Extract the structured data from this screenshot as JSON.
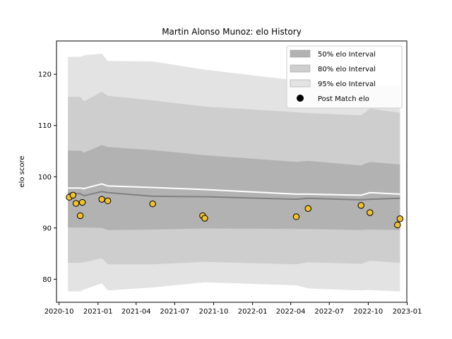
{
  "chart_data": {
    "type": "line",
    "title": "Martin Alonso Munoz: elo History",
    "xlabel": "",
    "ylabel": "elo score",
    "xlim": [
      "2020-09-25",
      "2022-12-31"
    ],
    "ylim": [
      75.5,
      126.5
    ],
    "x_ticks": [
      "2020-10",
      "2021-01",
      "2021-04",
      "2021-07",
      "2021-10",
      "2022-01",
      "2022-04",
      "2022-07",
      "2022-10",
      "2023-01"
    ],
    "y_ticks": [
      80,
      90,
      100,
      110,
      120
    ],
    "grid": false,
    "legend_position": "top-right",
    "bands_x": [
      "2020-10-22",
      "2020-11-20",
      "2020-11-29",
      "2021-01-10",
      "2021-01-24",
      "2021-05-10",
      "2021-09-10",
      "2022-04-14",
      "2022-05-12",
      "2022-09-14",
      "2022-10-05",
      "2022-12-15"
    ],
    "series": [
      {
        "name": "95% elo Interval",
        "kind": "band",
        "color": "#e3e3e3",
        "lower": [
          77.6,
          77.6,
          78.0,
          79.2,
          77.8,
          78.4,
          79.4,
          78.8,
          78.2,
          77.8,
          77.9,
          77.6
        ],
        "upper": [
          123.4,
          123.4,
          123.7,
          124.0,
          122.6,
          122.5,
          120.9,
          118.8,
          118.6,
          117.9,
          117.8,
          117.8
        ]
      },
      {
        "name": "80% elo Interval",
        "kind": "band",
        "color": "#cecece",
        "lower": [
          83.2,
          83.2,
          83.3,
          84.1,
          82.9,
          82.9,
          83.4,
          82.9,
          83.3,
          83.0,
          83.6,
          83.2
        ],
        "upper": [
          115.6,
          115.6,
          114.7,
          116.6,
          115.8,
          114.9,
          113.7,
          112.6,
          112.4,
          112.0,
          113.3,
          112.5
        ]
      },
      {
        "name": "50% elo Interval",
        "kind": "band",
        "color": "#b2b2b2",
        "lower": [
          90.1,
          90.1,
          90.1,
          90.0,
          89.6,
          89.7,
          89.9,
          89.8,
          89.8,
          89.6,
          89.7,
          89.6
        ],
        "upper": [
          105.1,
          105.1,
          104.7,
          106.2,
          105.8,
          105.2,
          104.2,
          102.9,
          103.1,
          102.2,
          102.9,
          102.4
        ]
      },
      {
        "name": "",
        "kind": "line",
        "color": "#ffffff",
        "values": [
          97.8,
          97.8,
          97.7,
          98.6,
          98.2,
          97.9,
          97.5,
          96.6,
          96.6,
          96.4,
          96.9,
          96.6
        ]
      },
      {
        "name": "",
        "kind": "line",
        "color": "#808080",
        "values": [
          96.8,
          96.7,
          96.3,
          97.1,
          96.9,
          96.2,
          96.1,
          95.6,
          95.8,
          95.5,
          95.6,
          95.8
        ]
      },
      {
        "name": "Post Match elo",
        "kind": "scatter",
        "color": "#f2c12e",
        "points": [
          {
            "x": "2020-10-25",
            "y": 96.0
          },
          {
            "x": "2020-11-03",
            "y": 96.4
          },
          {
            "x": "2020-11-10",
            "y": 94.8
          },
          {
            "x": "2020-11-20",
            "y": 92.4
          },
          {
            "x": "2020-11-25",
            "y": 95.0
          },
          {
            "x": "2021-01-10",
            "y": 95.6
          },
          {
            "x": "2021-01-24",
            "y": 95.3
          },
          {
            "x": "2021-05-10",
            "y": 94.7
          },
          {
            "x": "2021-09-05",
            "y": 92.4
          },
          {
            "x": "2021-09-10",
            "y": 91.9
          },
          {
            "x": "2022-04-14",
            "y": 92.2
          },
          {
            "x": "2022-05-12",
            "y": 93.8
          },
          {
            "x": "2022-09-14",
            "y": 94.4
          },
          {
            "x": "2022-10-05",
            "y": 93.0
          },
          {
            "x": "2022-12-09",
            "y": 90.6
          },
          {
            "x": "2022-12-15",
            "y": 91.8
          }
        ]
      }
    ]
  }
}
